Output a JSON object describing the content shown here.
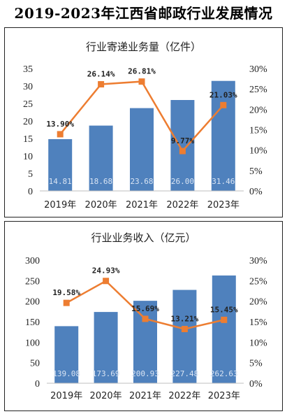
{
  "page_title": "2019-2023年江西省邮政行业发展情况",
  "colors": {
    "bar": "#4f81bd",
    "line": "#ed7d31",
    "bar_label": "#d9e4f3"
  },
  "chart_data": [
    {
      "type": "bar",
      "title": "行业寄递业务量（亿件）",
      "categories": [
        "2019年",
        "2020年",
        "2021年",
        "2022年",
        "2023年"
      ],
      "series": [
        {
          "values": [
            14.81,
            18.68,
            23.68,
            26.0,
            31.46
          ],
          "labels": [
            "14.81",
            "18.68",
            "23.68",
            "26.00",
            "31.46"
          ]
        },
        {
          "type": "line",
          "axis": "right",
          "values": [
            13.9,
            26.14,
            26.81,
            9.77,
            21.03
          ],
          "labels": [
            "13.90%",
            "26.14%",
            "26.81%",
            "9.77%",
            "21.03%"
          ]
        }
      ],
      "ylim": [
        0,
        35
      ],
      "yticks": [
        "0",
        "5",
        "10",
        "15",
        "20",
        "25",
        "30",
        "35"
      ],
      "y2lim": [
        0,
        30
      ],
      "y2ticks": [
        "0%",
        "5%",
        "10%",
        "15%",
        "20%",
        "25%",
        "30%"
      ],
      "grid": false
    },
    {
      "type": "bar",
      "title": "行业业务收入（亿元）",
      "categories": [
        "2019年",
        "2020年",
        "2021年",
        "2022年",
        "2023年"
      ],
      "series": [
        {
          "values": [
            139.08,
            173.69,
            200.93,
            227.48,
            262.63
          ],
          "labels": [
            "139.08",
            "173.69",
            "200.93",
            "227.48",
            "262.63"
          ]
        },
        {
          "type": "line",
          "axis": "right",
          "values": [
            19.58,
            24.93,
            15.69,
            13.21,
            15.45
          ],
          "labels": [
            "19.58%",
            "24.93%",
            "15.69%",
            "13.21%",
            "15.45%"
          ]
        }
      ],
      "ylim": [
        0,
        300
      ],
      "yticks": [
        "0",
        "50",
        "100",
        "150",
        "200",
        "250",
        "300"
      ],
      "y2lim": [
        0,
        30
      ],
      "y2ticks": [
        "0%",
        "5%",
        "10%",
        "15%",
        "20%",
        "25%",
        "30%"
      ],
      "grid": false
    }
  ]
}
